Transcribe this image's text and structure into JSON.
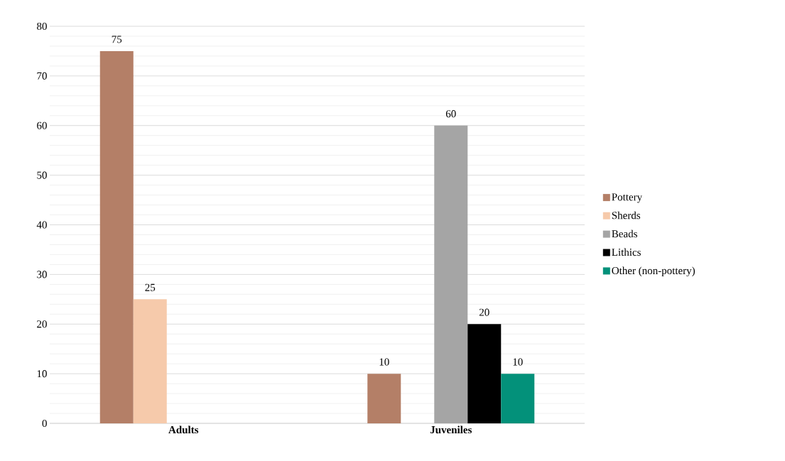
{
  "chart_data": {
    "type": "bar",
    "categories": [
      "Adults",
      "Juveniles"
    ],
    "series": [
      {
        "name": "Pottery",
        "color": "#b47f67",
        "values": [
          75,
          10
        ]
      },
      {
        "name": "Sherds",
        "color": "#f6caab",
        "values": [
          25,
          null
        ]
      },
      {
        "name": "Beads",
        "color": "#a5a5a5",
        "values": [
          null,
          60
        ]
      },
      {
        "name": "Lithics",
        "color": "#000000",
        "values": [
          null,
          20
        ]
      },
      {
        "name": "Other (non-pottery)",
        "color": "#03917a",
        "values": [
          null,
          10
        ]
      }
    ],
    "ylim": [
      0,
      80
    ],
    "yticks": [
      0,
      10,
      20,
      30,
      40,
      50,
      60,
      70,
      80
    ],
    "grid": "y",
    "legend": "right",
    "data_labels": true
  }
}
